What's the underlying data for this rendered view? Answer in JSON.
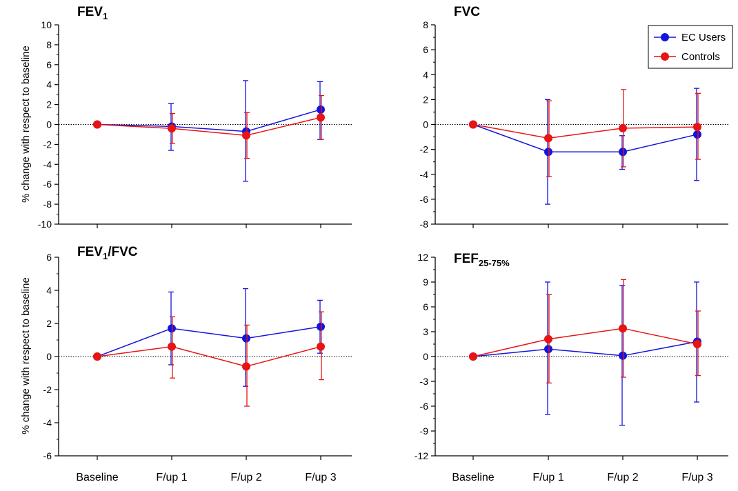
{
  "colors": {
    "ec_users": "#1414dc",
    "controls": "#e81414",
    "axis": "#000000"
  },
  "legend": {
    "placement": "top-right of FVC panel",
    "items": [
      {
        "label": "EC Users",
        "color": "#1414dc"
      },
      {
        "label": "Controls",
        "color": "#e81414"
      }
    ]
  },
  "categories": [
    "Baseline",
    "F/up 1",
    "F/up 2",
    "F/up 3"
  ],
  "chart_data": [
    {
      "type": "line",
      "title_main": "FEV",
      "title_sub": "1",
      "title_after": "",
      "ylabel": "% change with respect to baseline",
      "ylim": [
        -10,
        10
      ],
      "yticks": [
        "10",
        "8",
        "6",
        "4",
        "2",
        "0",
        "-2",
        "-4",
        "-6",
        "-8",
        "-10"
      ],
      "reference_line": 0,
      "series": [
        {
          "name": "EC Users",
          "values": [
            0,
            -0.2,
            -0.7,
            1.5
          ],
          "err_low": [
            0,
            -2.6,
            -5.7,
            -1.5
          ],
          "err_high": [
            0,
            2.1,
            4.4,
            4.3
          ]
        },
        {
          "name": "Controls",
          "values": [
            0,
            -0.4,
            -1.1,
            0.7
          ],
          "err_low": [
            0,
            -1.9,
            -3.4,
            -1.5
          ],
          "err_high": [
            0,
            1.1,
            1.2,
            2.9
          ]
        }
      ]
    },
    {
      "type": "line",
      "title_main": "FVC",
      "title_sub": "",
      "title_after": "",
      "ylabel": "",
      "ylim": [
        -8,
        8
      ],
      "yticks": [
        "8",
        "6",
        "4",
        "2",
        "0",
        "-2",
        "-4",
        "-6",
        "-8"
      ],
      "reference_line": 0,
      "series": [
        {
          "name": "EC Users",
          "values": [
            0,
            -2.2,
            -2.2,
            -0.8
          ],
          "err_low": [
            0,
            -6.4,
            -3.6,
            -4.5
          ],
          "err_high": [
            0,
            2.0,
            -0.9,
            2.9
          ]
        },
        {
          "name": "Controls",
          "values": [
            0,
            -1.1,
            -0.3,
            -0.2
          ],
          "err_low": [
            0,
            -4.2,
            -3.4,
            -2.8
          ],
          "err_high": [
            0,
            1.9,
            2.8,
            2.5
          ]
        }
      ]
    },
    {
      "type": "line",
      "title_main": "FEV",
      "title_sub": "1",
      "title_after": "/FVC",
      "ylabel": "% change with respect to baseline",
      "ylim": [
        -6,
        6
      ],
      "yticks": [
        "6",
        "4",
        "2",
        "0",
        "-2",
        "-4",
        "-6"
      ],
      "reference_line": 0,
      "series": [
        {
          "name": "EC Users",
          "values": [
            0,
            1.7,
            1.1,
            1.8
          ],
          "err_low": [
            0,
            -0.5,
            -1.8,
            0.2
          ],
          "err_high": [
            0,
            3.9,
            4.1,
            3.4
          ]
        },
        {
          "name": "Controls",
          "values": [
            0,
            0.6,
            -0.6,
            0.6
          ],
          "err_low": [
            0,
            -1.3,
            -3.0,
            -1.4
          ],
          "err_high": [
            0,
            2.4,
            1.9,
            2.7
          ]
        }
      ]
    },
    {
      "type": "line",
      "title_main": "FEF",
      "title_sub": "25-75%",
      "title_after": "",
      "ylabel": "",
      "ylim": [
        -12,
        12
      ],
      "yticks": [
        "12",
        "9",
        "6",
        "3",
        "0",
        "-3",
        "-6",
        "-9",
        "-12"
      ],
      "reference_line": 0,
      "series": [
        {
          "name": "EC Users",
          "values": [
            0,
            0.9,
            0.1,
            1.8
          ],
          "err_low": [
            0,
            -7.0,
            -8.3,
            -5.5
          ],
          "err_high": [
            0,
            9.0,
            8.6,
            9.0
          ]
        },
        {
          "name": "Controls",
          "values": [
            0,
            2.1,
            3.4,
            1.5
          ],
          "err_low": [
            0,
            -3.2,
            -2.5,
            -2.3
          ],
          "err_high": [
            0,
            7.5,
            9.3,
            5.5
          ]
        }
      ]
    }
  ]
}
